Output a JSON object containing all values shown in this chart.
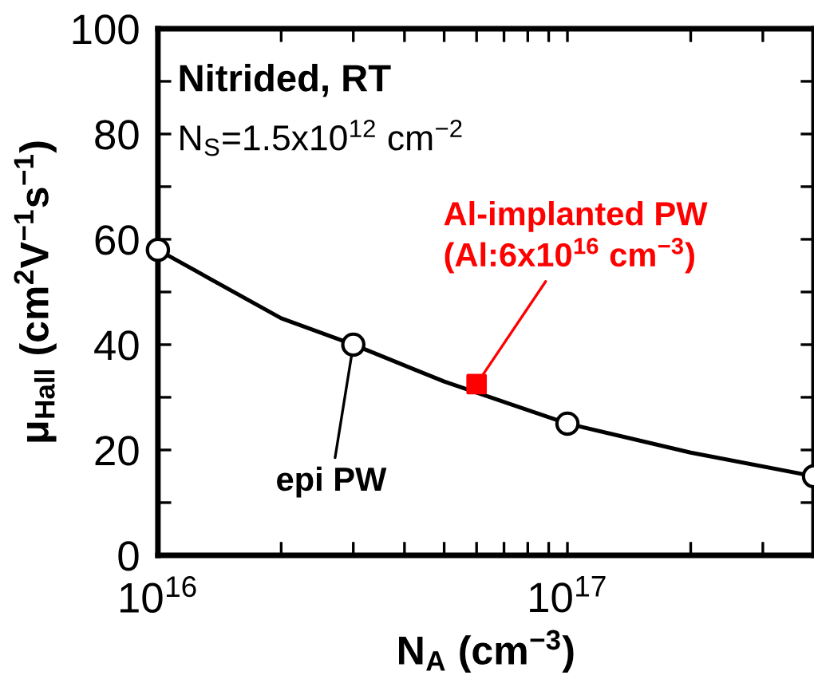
{
  "chart_data": {
    "type": "line",
    "xlabel": "N$_{A}$ (cm$^{−3}$)",
    "ylabel": "μ$_{Hall}$ (cm$^{2}$V$^{−1}$s$^{−1}$)",
    "log": "x",
    "xlim": [
      1e+16,
      4e+17
    ],
    "ylim": [
      0,
      100
    ],
    "xticks": [
      {
        "value": 1e+16,
        "label": "10$^{16}$"
      },
      {
        "value": 2e+16,
        "label": null
      },
      {
        "value": 3e+16,
        "label": null
      },
      {
        "value": 4e+16,
        "label": null
      },
      {
        "value": 5e+16,
        "label": null
      },
      {
        "value": 6e+16,
        "label": null
      },
      {
        "value": 7e+16,
        "label": null
      },
      {
        "value": 8e+16,
        "label": null
      },
      {
        "value": 9e+16,
        "label": null
      },
      {
        "value": 1e+17,
        "label": "10$^{17}$"
      },
      {
        "value": 2e+17,
        "label": null
      },
      {
        "value": 3e+17,
        "label": null
      },
      {
        "value": 4e+17,
        "label": null
      }
    ],
    "yticks": [
      0,
      {
        "value": 10,
        "label": null
      },
      20,
      {
        "value": 30,
        "label": null
      },
      40,
      {
        "value": 50,
        "label": null
      },
      60,
      {
        "value": 70,
        "label": null
      },
      80,
      {
        "value": 90,
        "label": null
      },
      100
    ],
    "grid": false,
    "series": [
      {
        "color": "#000000",
        "marker": "none",
        "x": [
          1e+16,
          2e+16,
          3e+16,
          5e+16,
          1e+17,
          2e+17,
          4e+17
        ],
        "values": [
          58,
          45,
          40,
          33,
          25,
          19.5,
          15
        ]
      },
      {
        "type": "scatter",
        "color": "#000000",
        "marker": "circle",
        "x": [
          1e+16,
          3e+16,
          1e+17,
          4e+17
        ],
        "values": [
          58,
          40,
          25,
          15
        ]
      },
      {
        "type": "scatter",
        "color": "#ff0000",
        "marker": "square",
        "x": [
          6e+16
        ],
        "values": [
          32.5
        ]
      }
    ],
    "annotations": [
      "Nitrided, RT",
      "N$_{S}$=1.5x10$^{12}$ cm$^{−2}$",
      {
        "text": "epi PW",
        "x": 3e+16,
        "y": 40
      },
      {
        "text": "Al-implanted PW\n(Al:6x10$^{16}$ cm$^{−3}$)",
        "x": 6e+16,
        "y": 32.5
      }
    ]
  }
}
